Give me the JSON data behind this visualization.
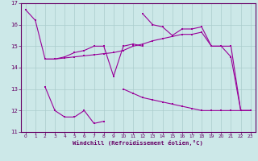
{
  "xlabel": "Windchill (Refroidissement éolien,°C)",
  "background_color": "#cce8e8",
  "grid_color": "#aacccc",
  "line_color": "#990099",
  "ylim": [
    11,
    17
  ],
  "xlim": [
    -0.5,
    23.5
  ],
  "yticks": [
    11,
    12,
    13,
    14,
    15,
    16,
    17
  ],
  "xtick_labels": [
    "0",
    "1",
    "2",
    "3",
    "4",
    "5",
    "6",
    "7",
    "8",
    "9",
    "10",
    "11",
    "12",
    "13",
    "14",
    "15",
    "16",
    "17",
    "18",
    "19",
    "20",
    "21",
    "22",
    "23"
  ],
  "line1_x": [
    0,
    1,
    2,
    3,
    4,
    5,
    6,
    7,
    8,
    9,
    10,
    11,
    12
  ],
  "line1_y": [
    16.7,
    16.2,
    14.4,
    14.4,
    14.5,
    14.7,
    14.8,
    15.0,
    15.0,
    13.6,
    15.0,
    15.1,
    15.0
  ],
  "line2_x": [
    2,
    3,
    4,
    5,
    6,
    7,
    8,
    9,
    10,
    11,
    12,
    13,
    14,
    15,
    16,
    17,
    18,
    19,
    20,
    21,
    22,
    23
  ],
  "line2_y": [
    14.4,
    14.4,
    14.45,
    14.5,
    14.55,
    14.6,
    14.65,
    14.7,
    14.8,
    15.0,
    15.1,
    15.25,
    15.35,
    15.45,
    15.55,
    15.55,
    15.65,
    15.0,
    15.0,
    15.0,
    12.0,
    12.0
  ],
  "line3_x": [
    12,
    13,
    14,
    15,
    16,
    17,
    18,
    19,
    20,
    21,
    22,
    23
  ],
  "line3_y": [
    16.5,
    16.0,
    15.9,
    15.5,
    15.8,
    15.8,
    15.9,
    15.0,
    15.0,
    14.5,
    12.0,
    12.0
  ],
  "line4_x": [
    2,
    3,
    4,
    5,
    6,
    7,
    8
  ],
  "line4_y": [
    13.1,
    12.0,
    11.7,
    11.7,
    12.0,
    11.4,
    11.5
  ],
  "line5_x": [
    10,
    11,
    12,
    13,
    14,
    15,
    16,
    17,
    18,
    19,
    20,
    21,
    22,
    23
  ],
  "line5_y": [
    13.0,
    12.8,
    12.6,
    12.5,
    12.4,
    12.3,
    12.2,
    12.1,
    12.0,
    12.0,
    12.0,
    12.0,
    12.0,
    12.0
  ]
}
